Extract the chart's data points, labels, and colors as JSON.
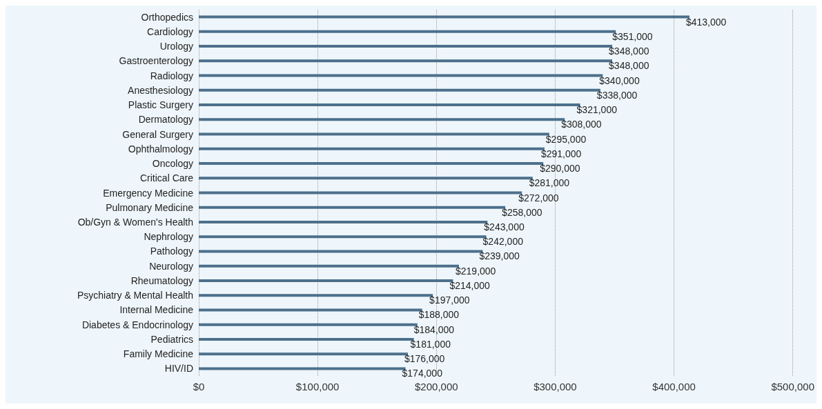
{
  "chart_data": {
    "type": "bar",
    "orientation": "horizontal",
    "categories": [
      "Orthopedics",
      "Cardiology",
      "Urology",
      "Gastroenterology",
      "Radiology",
      "Anesthesiology",
      "Plastic Surgery",
      "Dermatology",
      "General Surgery",
      "Ophthalmology",
      "Oncology",
      "Critical Care",
      "Emergency Medicine",
      "Pulmonary Medicine",
      "Ob/Gyn & Women's Health",
      "Nephrology",
      "Pathology",
      "Neurology",
      "Rheumatology",
      "Psychiatry & Mental Health",
      "Internal Medicine",
      "Diabetes & Endocrinology",
      "Pediatrics",
      "Family Medicine",
      "HIV/ID"
    ],
    "values": [
      413000,
      351000,
      348000,
      348000,
      340000,
      338000,
      321000,
      308000,
      295000,
      291000,
      290000,
      281000,
      272000,
      258000,
      243000,
      242000,
      239000,
      219000,
      214000,
      197000,
      188000,
      184000,
      181000,
      176000,
      174000
    ],
    "value_labels": [
      "$413,000",
      "$351,000",
      "$348,000",
      "$348,000",
      "$340,000",
      "$338,000",
      "$321,000",
      "$308,000",
      "$295,000",
      "$291,000",
      "$290,000",
      "$281,000",
      "$272,000",
      "$258,000",
      "$243,000",
      "$242,000",
      "$239,000",
      "$219,000",
      "$214,000",
      "$197,000",
      "$188,000",
      "$184,000",
      "$181,000",
      "$176,000",
      "$174,000"
    ],
    "color": "#4d6f8b",
    "xlim": [
      0,
      500000
    ],
    "xticks": [
      {
        "value": 0,
        "label": "$0"
      },
      {
        "value": 100000,
        "label": "$100,000"
      },
      {
        "value": 200000,
        "label": "$200,000"
      },
      {
        "value": 300000,
        "label": "$300,000"
      },
      {
        "value": 400000,
        "label": "$400,000"
      },
      {
        "value": 500000,
        "label": "$500,000"
      }
    ],
    "grid": "x"
  }
}
